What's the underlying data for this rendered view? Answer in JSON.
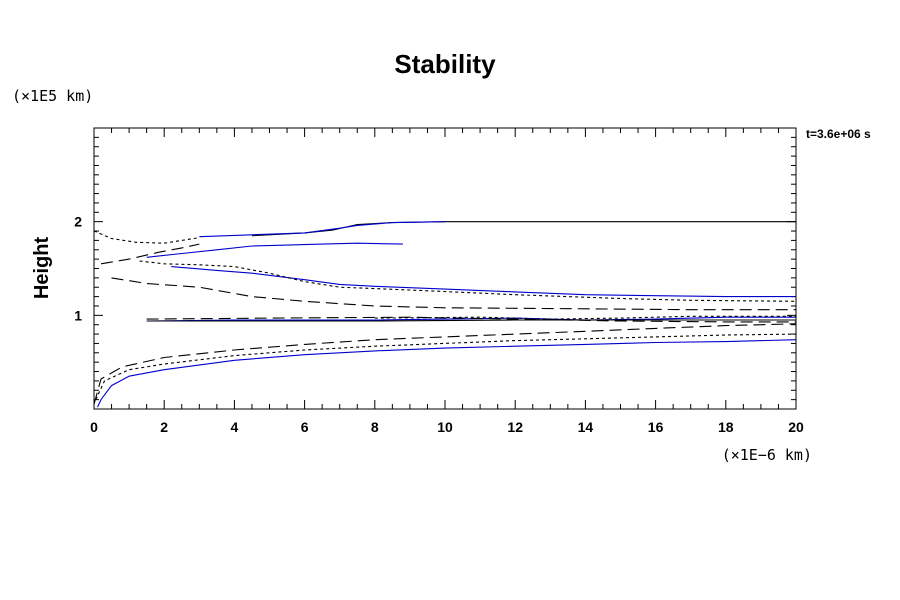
{
  "chart_data": {
    "type": "line",
    "title": "Stability",
    "ylabel": "Height",
    "y_unit": "(×1E5 km)",
    "x_unit": "(×1E−6 km)",
    "time_label": "t=3.6e+06 s",
    "xlim": [
      0,
      20
    ],
    "ylim": [
      0,
      3
    ],
    "x_ticks": [
      0,
      2,
      4,
      6,
      8,
      10,
      12,
      14,
      16,
      18,
      20
    ],
    "y_ticks": [
      1,
      2
    ],
    "grid": false,
    "colors": {
      "blue": "#0000cc",
      "black": "#000000"
    },
    "series": [
      {
        "color": "black",
        "dash": "solid",
        "points": [
          [
            4.5,
            1.85
          ],
          [
            6,
            1.88
          ],
          [
            6.8,
            1.91
          ],
          [
            7.5,
            1.97
          ],
          [
            8.5,
            1.99
          ],
          [
            10,
            2.0
          ],
          [
            12,
            2.0
          ],
          [
            20,
            2.0
          ]
        ]
      },
      {
        "color": "blue",
        "dash": "solid",
        "points": [
          [
            3,
            1.84
          ],
          [
            4.5,
            1.86
          ],
          [
            6,
            1.88
          ],
          [
            7,
            1.93
          ],
          [
            7.5,
            1.96
          ],
          [
            8.5,
            1.99
          ],
          [
            10,
            2.0
          ]
        ]
      },
      {
        "color": "blue",
        "dash": "solid",
        "points": [
          [
            1.5,
            1.62
          ],
          [
            2.5,
            1.66
          ],
          [
            3.5,
            1.7
          ],
          [
            4.5,
            1.74
          ],
          [
            5.5,
            1.75
          ],
          [
            6.5,
            1.76
          ],
          [
            7.5,
            1.77
          ],
          [
            8.8,
            1.76
          ]
        ]
      },
      {
        "color": "blue",
        "dash": "solid",
        "points": [
          [
            2.2,
            1.52
          ],
          [
            3.5,
            1.48
          ],
          [
            4.5,
            1.45
          ],
          [
            6,
            1.38
          ],
          [
            7,
            1.33
          ],
          [
            8,
            1.31
          ],
          [
            10,
            1.28
          ],
          [
            12,
            1.25
          ],
          [
            14,
            1.22
          ],
          [
            16,
            1.21
          ],
          [
            18,
            1.2
          ],
          [
            20,
            1.2
          ]
        ]
      },
      {
        "color": "blue",
        "dash": "solid",
        "points": [
          [
            0.1,
            0.02
          ],
          [
            0.2,
            0.1
          ],
          [
            0.5,
            0.25
          ],
          [
            1,
            0.35
          ],
          [
            2,
            0.42
          ],
          [
            4,
            0.52
          ],
          [
            6,
            0.58
          ],
          [
            8,
            0.62
          ],
          [
            10,
            0.65
          ],
          [
            12,
            0.67
          ],
          [
            14,
            0.69
          ],
          [
            16,
            0.71
          ],
          [
            18,
            0.72
          ],
          [
            20,
            0.74
          ]
        ]
      },
      {
        "color": "blue",
        "dash": "solid",
        "points": [
          [
            1.5,
            0.94
          ],
          [
            4,
            0.95
          ],
          [
            8,
            0.95
          ],
          [
            12,
            0.97
          ],
          [
            14,
            0.95
          ],
          [
            16,
            0.96
          ],
          [
            18,
            0.98
          ],
          [
            20,
            0.98
          ]
        ]
      },
      {
        "color": "black",
        "dash": "solid",
        "points": [
          [
            1.5,
            0.94
          ],
          [
            4,
            0.94
          ],
          [
            8,
            0.94
          ],
          [
            12,
            0.95
          ],
          [
            16,
            0.95
          ],
          [
            20,
            0.95
          ]
        ]
      },
      {
        "color": "black",
        "dash": "short",
        "points": [
          [
            0,
            1.9
          ],
          [
            0.5,
            1.82
          ],
          [
            1.2,
            1.78
          ],
          [
            2,
            1.77
          ],
          [
            2.5,
            1.8
          ],
          [
            3,
            1.83
          ]
        ]
      },
      {
        "color": "black",
        "dash": "short",
        "points": [
          [
            1.3,
            1.58
          ],
          [
            2,
            1.55
          ],
          [
            3,
            1.54
          ],
          [
            4,
            1.52
          ],
          [
            5,
            1.45
          ],
          [
            6,
            1.36
          ],
          [
            7,
            1.3
          ],
          [
            9,
            1.27
          ],
          [
            12,
            1.22
          ],
          [
            15,
            1.18
          ],
          [
            17,
            1.16
          ],
          [
            20,
            1.15
          ]
        ]
      },
      {
        "color": "black",
        "dash": "short",
        "points": [
          [
            0.05,
            0.1
          ],
          [
            0.3,
            0.3
          ],
          [
            1,
            0.42
          ],
          [
            2,
            0.48
          ],
          [
            4,
            0.57
          ],
          [
            6,
            0.63
          ],
          [
            8,
            0.67
          ],
          [
            10,
            0.7
          ],
          [
            12,
            0.73
          ],
          [
            14,
            0.75
          ],
          [
            16,
            0.77
          ],
          [
            18,
            0.79
          ],
          [
            20,
            0.8
          ]
        ]
      },
      {
        "color": "black",
        "dash": "short",
        "points": [
          [
            8,
            0.97
          ],
          [
            11,
            0.98
          ],
          [
            13,
            0.96
          ],
          [
            15,
            0.97
          ],
          [
            17,
            0.99
          ],
          [
            20,
            0.99
          ]
        ]
      },
      {
        "color": "black",
        "dash": "long",
        "points": [
          [
            0.2,
            1.55
          ],
          [
            1,
            1.6
          ],
          [
            1.8,
            1.67
          ],
          [
            2.5,
            1.72
          ],
          [
            3,
            1.76
          ]
        ]
      },
      {
        "color": "black",
        "dash": "long",
        "points": [
          [
            0.5,
            1.4
          ],
          [
            1.5,
            1.34
          ],
          [
            3,
            1.3
          ],
          [
            4.5,
            1.2
          ],
          [
            6,
            1.15
          ],
          [
            8,
            1.1
          ],
          [
            10,
            1.08
          ],
          [
            14,
            1.07
          ],
          [
            17,
            1.06
          ],
          [
            20,
            1.06
          ]
        ]
      },
      {
        "color": "black",
        "dash": "long",
        "points": [
          [
            0,
            0.05
          ],
          [
            0.2,
            0.32
          ],
          [
            0.8,
            0.45
          ],
          [
            2,
            0.55
          ],
          [
            4,
            0.63
          ],
          [
            6,
            0.69
          ],
          [
            8,
            0.74
          ],
          [
            10,
            0.77
          ],
          [
            12,
            0.8
          ],
          [
            14,
            0.83
          ],
          [
            16,
            0.86
          ],
          [
            18,
            0.89
          ],
          [
            20,
            0.91
          ]
        ]
      },
      {
        "color": "black",
        "dash": "long",
        "points": [
          [
            1.5,
            0.96
          ],
          [
            5,
            0.97
          ],
          [
            9,
            0.98
          ],
          [
            12,
            0.96
          ],
          [
            15,
            0.94
          ],
          [
            18,
            0.93
          ],
          [
            20,
            0.93
          ]
        ]
      },
      {
        "color": "black",
        "dash": "long",
        "points": [
          [
            18.2,
            0.0
          ],
          [
            20,
            0.0
          ]
        ]
      }
    ]
  }
}
